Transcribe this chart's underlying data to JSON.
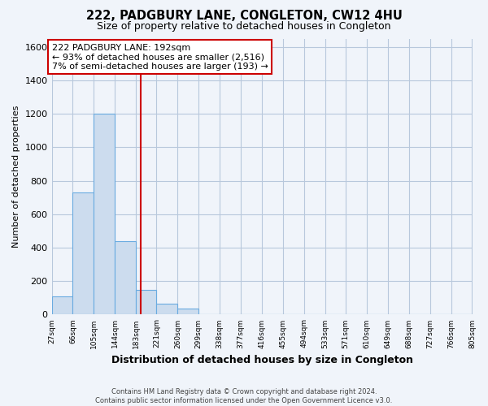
{
  "title": "222, PADGBURY LANE, CONGLETON, CW12 4HU",
  "subtitle": "Size of property relative to detached houses in Congleton",
  "xlabel": "Distribution of detached houses by size in Congleton",
  "ylabel": "Number of detached properties",
  "bar_values": [
    110,
    730,
    1200,
    440,
    150,
    65,
    35,
    0,
    0,
    0,
    0,
    0,
    0,
    0,
    0,
    0,
    0,
    0,
    0,
    0
  ],
  "bin_edges": [
    27,
    66,
    105,
    144,
    183,
    221,
    260,
    299,
    338,
    377,
    416,
    455,
    494,
    533,
    571,
    610,
    649,
    688,
    727,
    766,
    805
  ],
  "x_tick_labels": [
    "27sqm",
    "66sqm",
    "105sqm",
    "144sqm",
    "183sqm",
    "221sqm",
    "260sqm",
    "299sqm",
    "338sqm",
    "377sqm",
    "416sqm",
    "455sqm",
    "494sqm",
    "533sqm",
    "571sqm",
    "610sqm",
    "649sqm",
    "688sqm",
    "727sqm",
    "766sqm",
    "805sqm"
  ],
  "bar_color": "#ccdcee",
  "bar_edgecolor": "#6aabe0",
  "red_line_x": 192,
  "ylim": [
    0,
    1650
  ],
  "yticks": [
    0,
    200,
    400,
    600,
    800,
    1000,
    1200,
    1400,
    1600
  ],
  "annotation_line1": "222 PADGBURY LANE: 192sqm",
  "annotation_line2": "← 93% of detached houses are smaller (2,516)",
  "annotation_line3": "7% of semi-detached houses are larger (193) →",
  "annotation_box_edgecolor": "#cc0000",
  "background_color": "#f0f4fa",
  "plot_bg_color": "#f0f4fa",
  "grid_color": "#b8c8dc",
  "footer": "Contains HM Land Registry data © Crown copyright and database right 2024.\nContains public sector information licensed under the Open Government Licence v3.0."
}
